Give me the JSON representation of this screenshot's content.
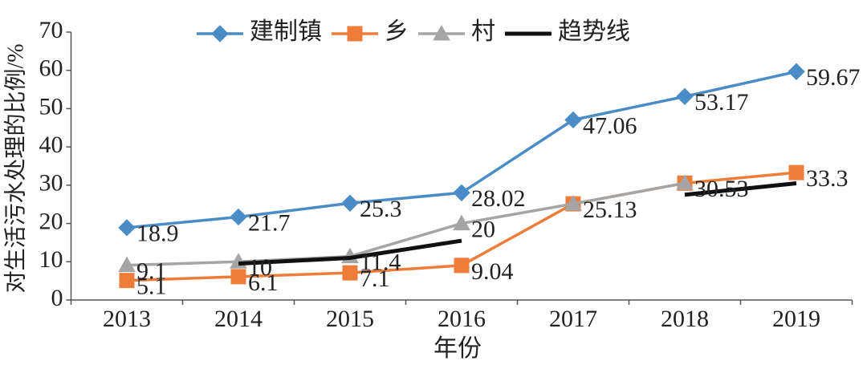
{
  "chart_data": {
    "type": "line",
    "x_label": "年份",
    "y_label": "对生活污水处理的比例/%",
    "categories": [
      "2013",
      "2014",
      "2015",
      "2016",
      "2017",
      "2018",
      "2019"
    ],
    "series": [
      {
        "name": "建制镇",
        "color": "#4a8cc6",
        "marker": "diamond",
        "values": [
          18.9,
          21.7,
          25.3,
          28.02,
          47.06,
          53.17,
          59.67
        ],
        "value_labels": [
          "18.9",
          "21.7",
          "25.3",
          "28.02",
          "47.06",
          "53.17",
          "59.67"
        ]
      },
      {
        "name": "乡",
        "color": "#ee7d3a",
        "marker": "square",
        "values": [
          5.1,
          6.1,
          7.1,
          9.04,
          25.13,
          30.53,
          33.3
        ],
        "value_labels": [
          "5.1",
          "6.1",
          "7.1",
          "9.04",
          null,
          null,
          "33.3"
        ]
      },
      {
        "name": "村",
        "color": "#a5a5a5",
        "marker": "triangle",
        "values": [
          9.1,
          10,
          11.4,
          20,
          25.13,
          30.53,
          null
        ],
        "value_labels": [
          "9.1",
          "10",
          "11.4",
          "20",
          "25.13",
          "30.53",
          null
        ]
      },
      {
        "name": "趋势线",
        "color": "#111111",
        "marker": "none",
        "values": [
          null,
          9.5,
          11,
          15.5,
          null,
          27.5,
          30.5
        ]
      }
    ],
    "ylim": [
      0,
      70
    ],
    "yticks": [
      0,
      10,
      20,
      30,
      40,
      50,
      60,
      70
    ],
    "legend": "top"
  }
}
